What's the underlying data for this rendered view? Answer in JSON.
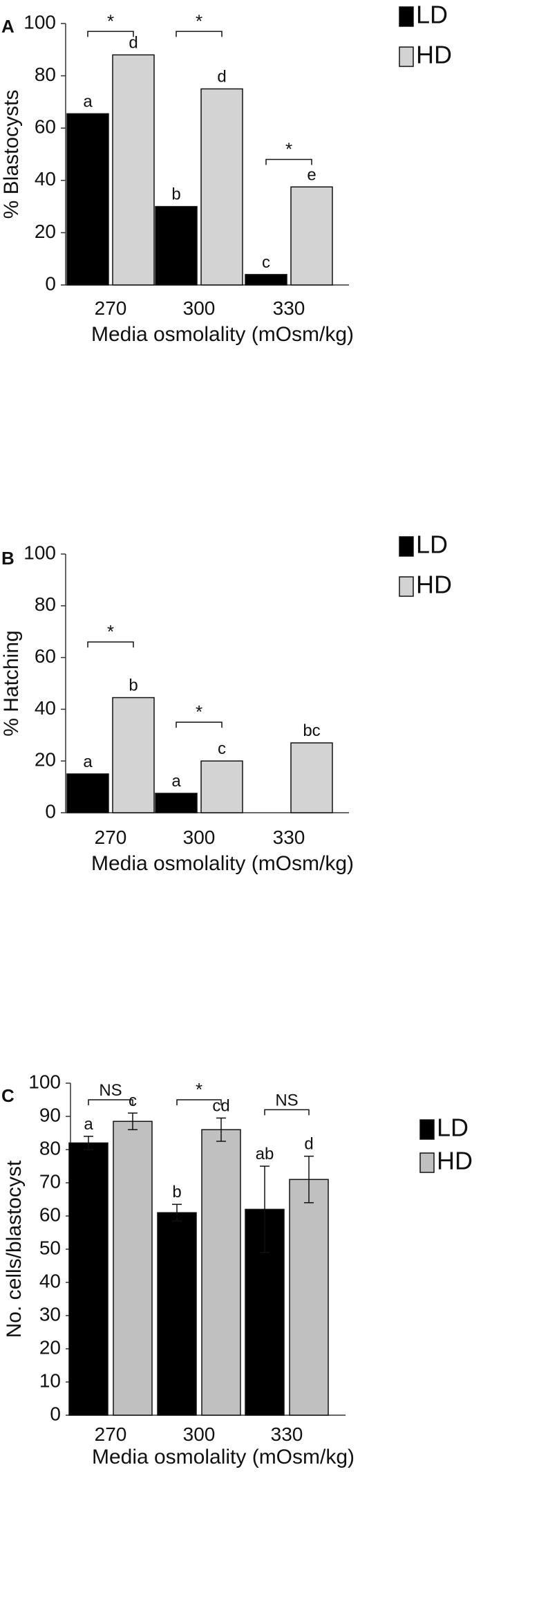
{
  "chart_data": [
    {
      "panel": "A",
      "type": "bar",
      "categories": [
        "270",
        "300",
        "330"
      ],
      "xlabel": "Media osmolality (mOsm/kg)",
      "ylabel": "% Blastocysts",
      "ylim": [
        0,
        100
      ],
      "yticks": [
        "0",
        "20",
        "40",
        "60",
        "80",
        "100"
      ],
      "legend_placement": "top-right",
      "series": [
        {
          "name": "LD",
          "color": "#000000",
          "values": [
            65.5,
            30,
            4
          ],
          "labels": [
            "a",
            "b",
            "c"
          ]
        },
        {
          "name": "HD",
          "color": "#d3d3d3",
          "values": [
            88,
            75,
            37.5
          ],
          "labels": [
            "d",
            "d",
            "e"
          ]
        }
      ],
      "comparisons": [
        {
          "category": 0,
          "text": "*",
          "level": 97
        },
        {
          "category": 1,
          "text": "*",
          "level": 97
        },
        {
          "category": 2,
          "text": "*",
          "level": 48
        }
      ]
    },
    {
      "panel": "B",
      "type": "bar",
      "categories": [
        "270",
        "300",
        "330"
      ],
      "xlabel": "Media osmolality (mOsm/kg)",
      "ylabel": "% Hatching",
      "ylim": [
        0,
        100
      ],
      "yticks": [
        "0",
        "20",
        "40",
        "60",
        "80",
        "100"
      ],
      "legend_placement": "top-right",
      "series": [
        {
          "name": "LD",
          "color": "#000000",
          "values": [
            15,
            7.5,
            0
          ],
          "labels": [
            "a",
            "a",
            ""
          ]
        },
        {
          "name": "HD",
          "color": "#d3d3d3",
          "values": [
            44.5,
            20,
            27
          ],
          "labels": [
            "b",
            "c",
            "bc"
          ]
        }
      ],
      "comparisons": [
        {
          "category": 0,
          "text": "*",
          "level": 66
        },
        {
          "category": 1,
          "text": "*",
          "level": 35
        }
      ]
    },
    {
      "panel": "C",
      "type": "bar",
      "categories": [
        "270",
        "300",
        "330"
      ],
      "xlabel": "Media osmolality (mOsm/kg)",
      "ylabel": "No. cells/blastocyst",
      "ylim": [
        0,
        100
      ],
      "yticks": [
        "0",
        "10",
        "20",
        "30",
        "40",
        "50",
        "60",
        "70",
        "80",
        "90",
        "100"
      ],
      "legend_placement": "top-right",
      "series": [
        {
          "name": "LD",
          "color": "#000000",
          "values": [
            82,
            61,
            62
          ],
          "errors": [
            2,
            2.5,
            13
          ],
          "labels": [
            "a",
            "b",
            "ab"
          ]
        },
        {
          "name": "HD",
          "color": "#c0c0c0",
          "values": [
            88.5,
            86,
            71
          ],
          "errors": [
            2.5,
            3.5,
            7
          ],
          "labels": [
            "c",
            "cd",
            "d"
          ]
        }
      ],
      "comparisons": [
        {
          "category": 0,
          "text": "NS",
          "level": 95
        },
        {
          "category": 1,
          "text": "*",
          "level": 95
        },
        {
          "category": 2,
          "text": "NS",
          "level": 92
        }
      ]
    }
  ]
}
